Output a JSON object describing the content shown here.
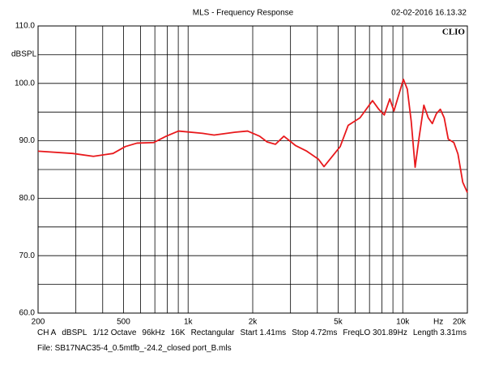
{
  "chart_data": {
    "type": "line",
    "title": "MLS - Frequency Response",
    "timestamp": "02-02-2016 16.13.32",
    "brand": "CLIO",
    "y_label": "dBSPL",
    "x_unit": "Hz",
    "log_x": true,
    "grid": true,
    "color": "#e8191c",
    "xlim": [
      200,
      20000
    ],
    "ylim": [
      60,
      110
    ],
    "xticks": [
      200,
      500,
      {
        "value": 1000,
        "label": "1k"
      },
      {
        "value": 2000,
        "label": "2k"
      },
      {
        "value": 5000,
        "label": "5k"
      },
      {
        "value": 10000,
        "label": "10k"
      },
      {
        "value": 20000,
        "label": "20k"
      }
    ],
    "minor_xticks": [
      300,
      400,
      600,
      700,
      800,
      900,
      3000,
      4000,
      6000,
      7000,
      8000,
      9000
    ],
    "yticks": [
      {
        "value": 60,
        "label": "60.0"
      },
      {
        "value": 70,
        "label": "70.0"
      },
      {
        "value": 80,
        "label": "80.0"
      },
      {
        "value": 90,
        "label": "90.0"
      },
      {
        "value": 100,
        "label": "100.0"
      },
      {
        "value": 110,
        "label": "110.0"
      }
    ],
    "minor_yticks": [
      65,
      75,
      85,
      95,
      105
    ],
    "x": [
      200,
      290,
      362,
      447,
      510,
      578,
      692,
      790,
      902,
      1168,
      1322,
      1655,
      1893,
      2154,
      2335,
      2552,
      2794,
      3159,
      3570,
      4046,
      4296,
      5112,
      5570,
      6320,
      7230,
      7730,
      8200,
      8700,
      9100,
      10070,
      10500,
      10950,
      11420,
      11920,
      12540,
      13150,
      13730,
      14330,
      14960,
      15600,
      16290,
      17300,
      18080,
      19030,
      20000
    ],
    "values": [
      88.2,
      87.8,
      87.3,
      87.8,
      89.0,
      89.6,
      89.7,
      90.8,
      91.7,
      91.3,
      91.0,
      91.5,
      91.7,
      90.8,
      89.8,
      89.4,
      90.8,
      89.2,
      88.2,
      86.8,
      85.5,
      89.0,
      92.7,
      94.0,
      97.0,
      95.5,
      94.5,
      97.3,
      95.2,
      100.7,
      99.0,
      93.4,
      85.4,
      90.6,
      96.2,
      94.0,
      93.0,
      94.7,
      95.5,
      94.0,
      90.3,
      89.7,
      87.7,
      82.8,
      81.0
    ]
  },
  "footer": {
    "settings": [
      "CH A",
      "dBSPL",
      "1/12 Octave",
      "96kHz",
      "16K",
      "Rectangular",
      "Start 1.41ms",
      "Stop 4.72ms",
      "FreqLO 301.89Hz",
      "Length 3.31ms"
    ],
    "file": "File: SB17NAC35-4_0.5mtfb_-24.2_closed port_B.mls"
  }
}
